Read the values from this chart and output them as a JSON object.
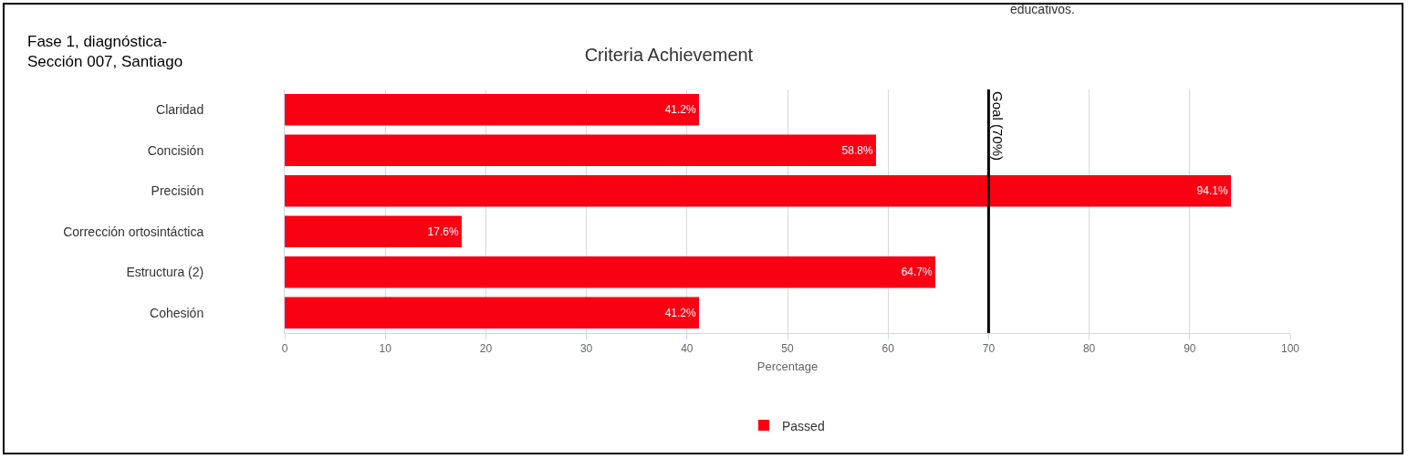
{
  "chart_data": {
    "type": "bar",
    "orientation": "horizontal",
    "title": "Criteria Achievement",
    "xlabel": "Percentage",
    "categories": [
      "Claridad",
      "Concisión",
      "Precisión",
      "Corrección ortosintáctica",
      "Estructura (2)",
      "Cohesión"
    ],
    "series": [
      {
        "name": "Passed",
        "color": "#f90012",
        "values": [
          41.2,
          58.8,
          94.1,
          17.6,
          64.7,
          41.2
        ],
        "value_labels": [
          "41.2%",
          "58.8%",
          "94.1%",
          "17.6%",
          "64.7%",
          "41.2%"
        ]
      }
    ],
    "xlim": [
      0,
      100
    ],
    "xticks": [
      0,
      10,
      20,
      30,
      40,
      50,
      60,
      70,
      80,
      90,
      100
    ],
    "grid": "x",
    "legend": "bottom",
    "ref_lines": [
      {
        "axis": "x",
        "value": 70,
        "label": "Goal (70%)",
        "color": "#000000"
      }
    ],
    "annotations": [
      "Fase 1, diagnóstica-\nSección 007, Santiago",
      "educativos."
    ]
  }
}
